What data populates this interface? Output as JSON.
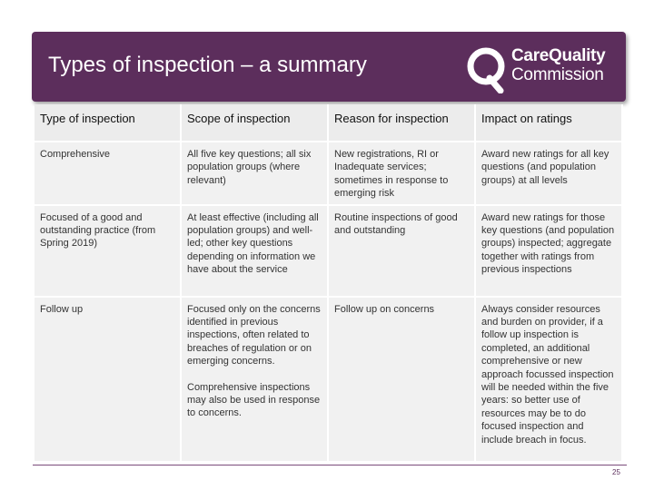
{
  "header": {
    "title": "Types of inspection – a summary",
    "logo_line1": "CareQuality",
    "logo_line2": "Commission"
  },
  "table": {
    "columns": [
      "Type of inspection",
      "Scope of inspection",
      "Reason for inspection",
      "Impact on ratings"
    ],
    "rows": [
      {
        "type": "Comprehensive",
        "scope": "All five key questions; all six population groups (where relevant)",
        "scope_extra": "",
        "reason": "New registrations, RI or Inadequate services; sometimes in response to emerging risk",
        "impact": "Award new ratings for all key questions (and population groups) at all levels"
      },
      {
        "type": "Focused of a good and outstanding practice (from Spring 2019)",
        "scope": "At least effective (including all population groups) and well-led; other key questions depending on information we have about the service",
        "scope_extra": "",
        "reason": "Routine inspections of good and outstanding",
        "impact": "Award new ratings for those key questions (and population groups) inspected; aggregate together with ratings from previous inspections"
      },
      {
        "type": "Follow up",
        "scope": "Focused only on the concerns identified in previous inspections, often related to breaches of regulation or on emerging concerns.",
        "scope_extra": "Comprehensive inspections may also be used in response to concerns.",
        "reason": "Follow up on concerns",
        "impact": "Always consider resources and burden on provider, if a follow up inspection is completed, an additional comprehensive or new approach focussed inspection will be needed within the five years: so better use of resources may be to do focused inspection and include breach in focus."
      }
    ]
  },
  "footer": {
    "page_number": "25"
  },
  "colors": {
    "banner": "#5c2e5c",
    "header_cell": "#ececec",
    "body_cell": "#f1f1f1"
  }
}
